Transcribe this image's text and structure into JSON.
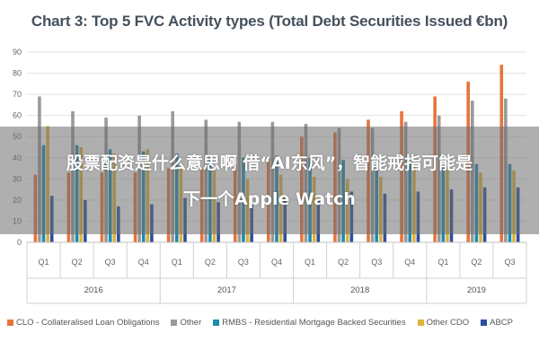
{
  "chart_data": {
    "type": "bar",
    "title": "Chart 3: Top 5 FVC Activity types (Total Debt Securities Issued €bn)",
    "xlabel": "",
    "ylabel": "",
    "ylim": [
      0,
      90
    ],
    "yticks": [
      0,
      10,
      20,
      30,
      40,
      50,
      60,
      70,
      80,
      90
    ],
    "grid": true,
    "legend_position": "bottom",
    "categories": [
      "Q1",
      "Q2",
      "Q3",
      "Q4",
      "Q1",
      "Q2",
      "Q3",
      "Q4",
      "Q1",
      "Q2",
      "Q3",
      "Q4",
      "Q1",
      "Q2",
      "Q3"
    ],
    "groups": [
      {
        "label": "2016",
        "count": 4
      },
      {
        "label": "2017",
        "count": 4
      },
      {
        "label": "2018",
        "count": 4
      },
      {
        "label": "2019",
        "count": 3
      }
    ],
    "series": [
      {
        "name": "CLO - Collateralised Loan Obligations",
        "color": "#e8743b",
        "values": [
          32,
          33,
          33,
          33,
          35,
          35,
          37,
          40,
          50,
          52,
          58,
          62,
          69,
          76,
          84
        ]
      },
      {
        "name": "Other",
        "color": "#9a9a9a",
        "values": [
          69,
          62,
          59,
          60,
          62,
          58,
          57,
          57,
          56,
          54,
          54,
          57,
          60,
          67,
          68
        ]
      },
      {
        "name": "RMBS - Residential Mortgage Backed Securities",
        "color": "#1b8bb0",
        "values": [
          46,
          46,
          44,
          43,
          42,
          41,
          40,
          41,
          40,
          39,
          39,
          38,
          37,
          37,
          37
        ]
      },
      {
        "name": "Other CDO",
        "color": "#e0b23a",
        "values": [
          55,
          45,
          42,
          44,
          36,
          34,
          30,
          32,
          31,
          30,
          31,
          36,
          36,
          33,
          34
        ]
      },
      {
        "name": "ABCP",
        "color": "#2b4e9e",
        "values": [
          22,
          20,
          17,
          18,
          21,
          19,
          19,
          21,
          20,
          24,
          23,
          24,
          25,
          26,
          26
        ]
      }
    ]
  },
  "overlay": {
    "line1": "股票配资是什么意思啊 借“AI东风”，智能戒指可能是",
    "line2": "下一个Apple Watch"
  }
}
